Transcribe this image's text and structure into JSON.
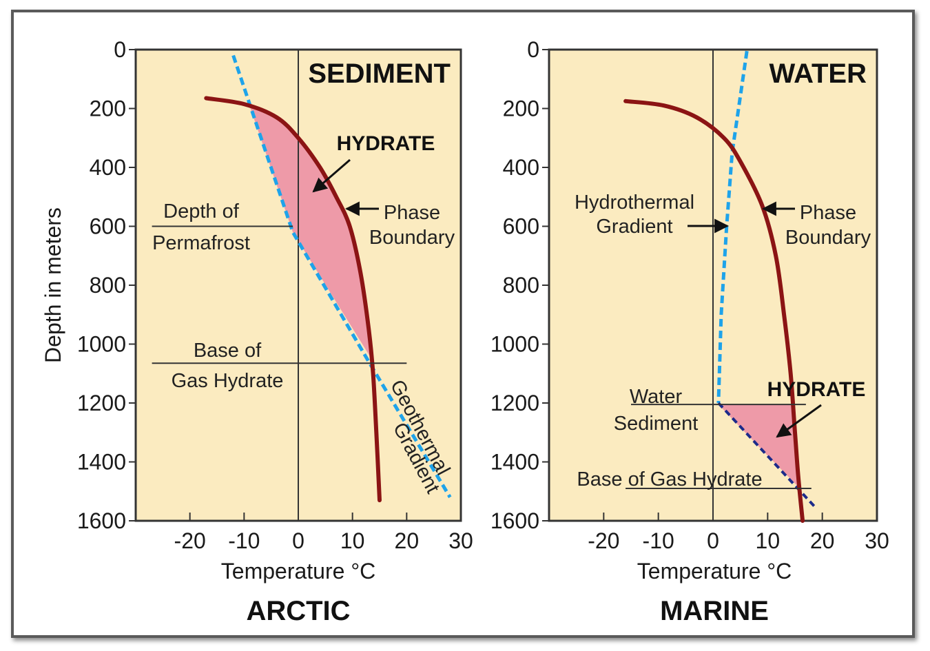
{
  "colors": {
    "plot_bg": "#fbebc0",
    "phase_boundary": "#8b1414",
    "gradient_line": "#1ea3ea",
    "hydrate_fill": "#ee9aa8",
    "marine_lower_gradient": "#1c2b8a",
    "frame": "#5a5a5a"
  },
  "chart_data": [
    {
      "type": "line",
      "title": "ARCTIC",
      "panel_label": "SEDIMENT",
      "xlabel": "Temperature °C",
      "ylabel": "Depth in meters",
      "xlim": [
        -30,
        30
      ],
      "ylim": [
        1600,
        0
      ],
      "y_inverted": true,
      "x_ticks": [
        "-20",
        "-10",
        "0",
        "10",
        "20",
        "30"
      ],
      "y_ticks": [
        "0",
        "200",
        "400",
        "600",
        "800",
        "1000",
        "1200",
        "1400",
        "1600"
      ],
      "series": [
        {
          "role": "phase_boundary",
          "style": "solid",
          "points": [
            [
              -17,
              165
            ],
            [
              -10,
              185
            ],
            [
              -4,
              230
            ],
            [
              0,
              300
            ],
            [
              4,
              400
            ],
            [
              7,
              500
            ],
            [
              9.5,
              600
            ],
            [
              11.5,
              760
            ],
            [
              13,
              950
            ],
            [
              13.8,
              1100
            ],
            [
              14.4,
              1300
            ],
            [
              15,
              1530
            ]
          ]
        },
        {
          "role": "gradient",
          "style": "dashed",
          "points": [
            [
              -12,
              20
            ],
            [
              -1,
              620
            ],
            [
              13,
              1060
            ],
            [
              28,
              1520
            ]
          ]
        }
      ],
      "hydrate_region": [
        [
          -9,
          190
        ],
        [
          -4,
          230
        ],
        [
          0,
          300
        ],
        [
          4,
          400
        ],
        [
          7,
          500
        ],
        [
          9.5,
          600
        ],
        [
          11.5,
          760
        ],
        [
          13,
          950
        ],
        [
          13.5,
          1050
        ],
        [
          -1,
          620
        ]
      ],
      "reference_lines": [
        {
          "label": "Depth of Permafrost",
          "y": 600,
          "x_from": -27,
          "x_to": -1
        },
        {
          "label": "Base of Gas Hydrate",
          "y": 1065,
          "x_from": -27,
          "x_to": 20
        }
      ],
      "annotations": {
        "hydrate": "HYDRATE",
        "phase_line1": "Phase",
        "phase_line2": "Boundary",
        "permafrost_line1": "Depth of",
        "permafrost_line2": "Permafrost",
        "base_line1": "Base of",
        "base_line2": "Gas Hydrate",
        "geo_line1": "Geothermal",
        "geo_line2": "Gradient"
      }
    },
    {
      "type": "line",
      "title": "MARINE",
      "panel_label": "WATER",
      "xlabel": "Temperature °C",
      "ylabel": "",
      "xlim": [
        -30,
        30
      ],
      "ylim": [
        1600,
        0
      ],
      "y_inverted": true,
      "x_ticks": [
        "-20",
        "-10",
        "0",
        "10",
        "20",
        "30"
      ],
      "y_ticks": [
        "0",
        "200",
        "400",
        "600",
        "800",
        "1000",
        "1200",
        "1400",
        "1600"
      ],
      "series": [
        {
          "role": "phase_boundary",
          "style": "solid",
          "points": [
            [
              -16,
              175
            ],
            [
              -9,
              190
            ],
            [
              -3,
              230
            ],
            [
              2,
              300
            ],
            [
              5,
              380
            ],
            [
              9,
              530
            ],
            [
              11.5,
              700
            ],
            [
              13,
              900
            ],
            [
              14.2,
              1100
            ],
            [
              15,
              1300
            ],
            [
              15.6,
              1450
            ],
            [
              16.4,
              1600
            ]
          ]
        },
        {
          "role": "hydrothermal_gradient",
          "style": "dashed",
          "points": [
            [
              6.2,
              5
            ],
            [
              3.5,
              350
            ],
            [
              2.5,
              600
            ],
            [
              1.5,
              900
            ],
            [
              1,
              1200
            ]
          ]
        },
        {
          "role": "geothermal_gradient",
          "style": "dashed",
          "points": [
            [
              1,
              1200
            ],
            [
              18.5,
              1550
            ]
          ]
        }
      ],
      "hydrate_region": [
        [
          1,
          1205
        ],
        [
          15,
          1205
        ],
        [
          15.5,
          1400
        ],
        [
          15.9,
          1490
        ],
        [
          9,
          1360
        ]
      ],
      "reference_lines": [
        {
          "label": "Water Sediment",
          "y": 1205,
          "x_from": -15,
          "x_to": 17
        },
        {
          "label": "Base of Gas Hydrate",
          "y": 1490,
          "x_from": -16,
          "x_to": 18
        }
      ],
      "annotations": {
        "hydrate": "HYDRATE",
        "phase_line1": "Phase",
        "phase_line2": "Boundary",
        "hydro_line1": "Hydrothermal",
        "hydro_line2": "Gradient",
        "water": "Water",
        "sediment": "Sediment",
        "base": "Base of Gas Hydrate"
      }
    }
  ]
}
